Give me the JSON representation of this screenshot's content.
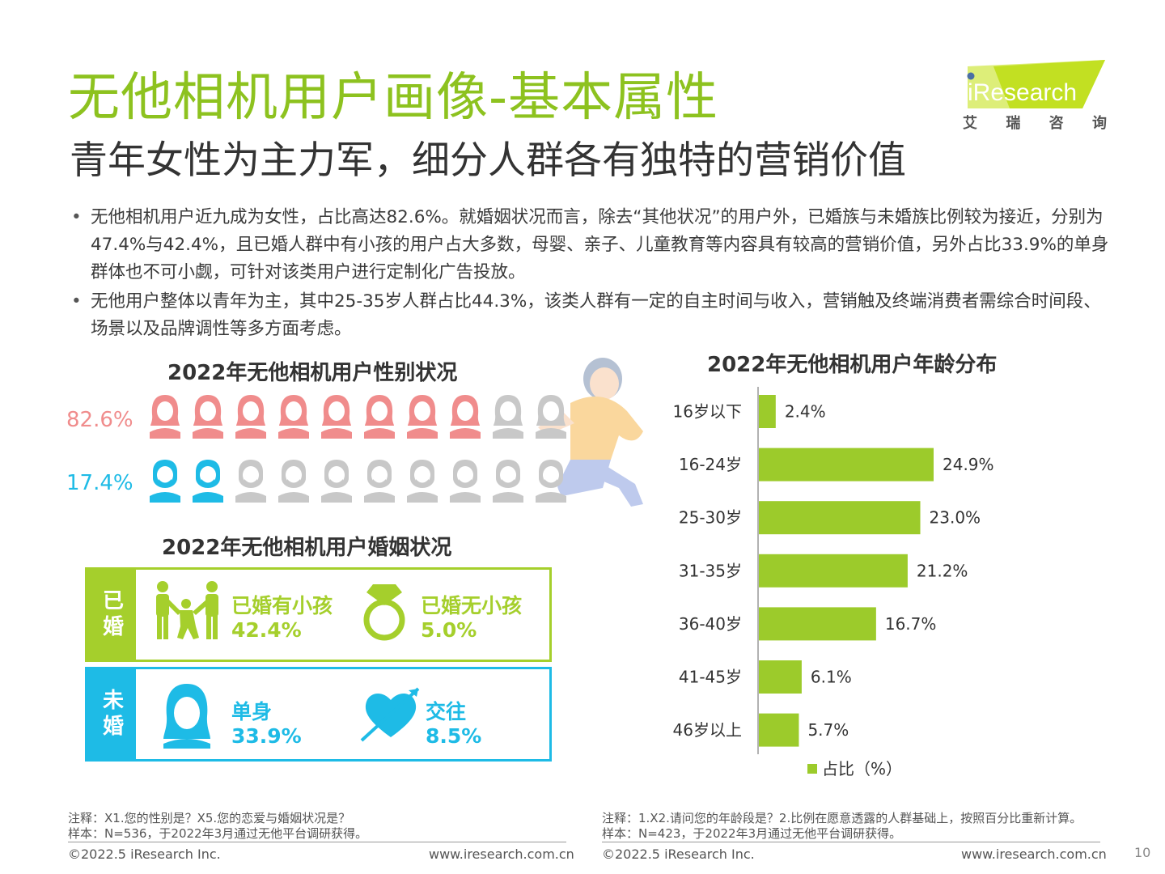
{
  "title": "无他相机用户画像-基本属性",
  "subtitle": "青年女性为主力军，细分人群各有独特的营销价值",
  "brand": {
    "logo_text": "iResearch",
    "cn": [
      "艾",
      "瑞",
      "咨",
      "询"
    ],
    "color": "#8dc21f"
  },
  "bullets": [
    "无他相机用户近九成为女性，占比高达82.6%。就婚姻状况而言，除去“其他状况”的用户外，已婚族与未婚族比例较为接近，分别为47.4%与42.4%，且已婚人群中有小孩的用户占大多数，母婴、亲子、儿童教育等内容具有较高的营销价值，另外占比33.9%的单身群体也不可小觑，可针对该类用户进行定制化广告投放。",
    "无他用户整体以青年为主，其中25-35岁人群占比44.3%，该类人群有一定的自主时间与收入，营销触及终端消费者需综合时间段、场景以及品牌调性等多方面考虑。"
  ],
  "gender": {
    "title": "2022年无他相机用户性别状况",
    "female": {
      "label": "82.6%",
      "value": 82.6,
      "filled_icons": 8,
      "total_icons": 10,
      "color": "#f08c8c"
    },
    "male": {
      "label": "17.4%",
      "value": 17.4,
      "filled_icons": 2,
      "total_icons": 10,
      "color": "#1ebbe6"
    },
    "empty_color": "#c8c8c8"
  },
  "marriage": {
    "title": "2022年无他相机用户婚姻状况",
    "married": {
      "tab": "已婚",
      "color": "#a5cf2c",
      "items": [
        {
          "icon": "family-icon",
          "name": "已婚有小孩",
          "value": "42.4%"
        },
        {
          "icon": "diamond-ring-icon",
          "name": "已婚无小孩",
          "value": "5.0%"
        }
      ]
    },
    "unmarried": {
      "tab": "未婚",
      "color": "#1ebbe6",
      "items": [
        {
          "icon": "single-woman-icon",
          "name": "单身",
          "value": "33.9%"
        },
        {
          "icon": "heart-arrow-icon",
          "name": "交往",
          "value": "8.5%"
        }
      ]
    }
  },
  "chart_data": {
    "type": "bar",
    "orientation": "horizontal",
    "title": "2022年无他相机用户年龄分布",
    "categories": [
      "16岁以下",
      "16-24岁",
      "25-30岁",
      "31-35岁",
      "36-40岁",
      "41-45岁",
      "46岁以上"
    ],
    "values": [
      2.4,
      24.9,
      23.0,
      21.2,
      16.7,
      6.1,
      5.7
    ],
    "value_labels": [
      "2.4%",
      "24.9%",
      "23.0%",
      "21.2%",
      "16.7%",
      "6.1%",
      "5.7%"
    ],
    "series": [
      {
        "name": "占比（%）",
        "values": [
          2.4,
          24.9,
          23.0,
          21.2,
          16.7,
          6.1,
          5.7
        ]
      }
    ],
    "xlim": [
      0,
      30
    ],
    "color": "#9ccb2b",
    "legend": "bottom",
    "grid": false
  },
  "notes": {
    "left": [
      "注释：X1.您的性别是？X5.您的恋爱与婚姻状况是？",
      "样本：N=536，于2022年3月通过无他平台调研获得。"
    ],
    "right": [
      "注释：1.X2.请问您的年龄段是？2.比例在愿意透露的人群基础上，按照百分比重新计算。",
      "样本：N=423，于2022年3月通过无他平台调研获得。"
    ]
  },
  "footer": {
    "copyright": "©2022.5 iResearch Inc.",
    "url": "www.iresearch.com.cn",
    "page": "10"
  }
}
